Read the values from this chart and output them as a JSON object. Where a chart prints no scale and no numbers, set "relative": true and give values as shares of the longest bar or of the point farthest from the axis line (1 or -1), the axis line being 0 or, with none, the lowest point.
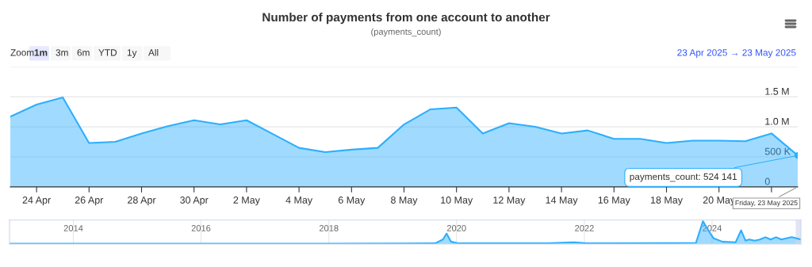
{
  "chart_data": [
    {
      "type": "area",
      "title": "Number of payments from one account to another",
      "subtitle": "(payments_count)",
      "color": "#2caffe",
      "grid": "y",
      "legend": false,
      "marker": "none",
      "x": [
        "2025-04-23",
        "2025-04-24",
        "2025-04-25",
        "2025-04-26",
        "2025-04-27",
        "2025-04-28",
        "2025-04-29",
        "2025-04-30",
        "2025-05-01",
        "2025-05-02",
        "2025-05-03",
        "2025-05-04",
        "2025-05-05",
        "2025-05-06",
        "2025-05-07",
        "2025-05-08",
        "2025-05-09",
        "2025-05-10",
        "2025-05-11",
        "2025-05-12",
        "2025-05-13",
        "2025-05-14",
        "2025-05-15",
        "2025-05-16",
        "2025-05-17",
        "2025-05-18",
        "2025-05-19",
        "2025-05-20",
        "2025-05-21",
        "2025-05-22",
        "2025-05-23"
      ],
      "values": [
        1170000,
        1370000,
        1490000,
        730000,
        750000,
        890000,
        1010000,
        1110000,
        1040000,
        1110000,
        880000,
        650000,
        580000,
        620000,
        650000,
        1040000,
        1290000,
        1320000,
        890000,
        1060000,
        1000000,
        890000,
        940000,
        800000,
        800000,
        730000,
        770000,
        770000,
        760000,
        890000,
        524141
      ],
      "xlim": [
        "2025-04-23",
        "2025-05-23"
      ],
      "xticks": [
        {
          "value": "2025-04-24",
          "label": "24 Apr"
        },
        {
          "value": "2025-04-26",
          "label": "26 Apr"
        },
        {
          "value": "2025-04-28",
          "label": "28 Apr"
        },
        {
          "value": "2025-04-30",
          "label": "30 Apr"
        },
        {
          "value": "2025-05-02",
          "label": "2 May"
        },
        {
          "value": "2025-05-04",
          "label": "4 May"
        },
        {
          "value": "2025-05-06",
          "label": "6 May"
        },
        {
          "value": "2025-05-08",
          "label": "8 May"
        },
        {
          "value": "2025-05-10",
          "label": "10 May"
        },
        {
          "value": "2025-05-12",
          "label": "12 May"
        },
        {
          "value": "2025-05-14",
          "label": "14 May"
        },
        {
          "value": "2025-05-16",
          "label": "16 May"
        },
        {
          "value": "2025-05-18",
          "label": "18 May"
        },
        {
          "value": "2025-05-20",
          "label": "20 May"
        },
        {
          "value": "2025-05-22",
          "label": null
        }
      ],
      "ylim": [
        0,
        2000000
      ],
      "yticks": [
        {
          "value": 0,
          "label": "0"
        },
        {
          "value": 500000,
          "label": "500 K"
        },
        {
          "value": 1000000,
          "label": "1.0 M"
        },
        {
          "value": 1500000,
          "label": "1.5 M"
        },
        {
          "value": 2000000,
          "label": null
        }
      ],
      "annotations": [
        "Zoom",
        "1m",
        "3m",
        "6m",
        "YTD",
        "1y",
        "All",
        "23 Apr 2025 → 23 May 2025",
        {
          "text": "payments_count: 524 141",
          "x": "2025-05-23",
          "y": 524141
        },
        {
          "text": "Friday, 23 May 2025",
          "x": "2025-05-23",
          "y": 0
        }
      ]
    },
    {
      "type": "area",
      "relative": true,
      "color": "#2caffe",
      "grid": "x",
      "legend": false,
      "marker": "none",
      "x": [
        "2013-01-01",
        "2014-01-01",
        "2016-01-01",
        "2018-01-01",
        "2019-09-01",
        "2019-10-15",
        "2019-11-05",
        "2019-12-01",
        "2020-01-15",
        "2021-06-01",
        "2021-11-01",
        "2022-01-15",
        "2023-06-01",
        "2023-10-01",
        "2023-11-10",
        "2023-12-10",
        "2024-01-10",
        "2024-03-01",
        "2024-05-15",
        "2024-06-15",
        "2024-07-10",
        "2024-08-01",
        "2024-09-01",
        "2024-10-01",
        "2024-11-01",
        "2024-12-01",
        "2025-01-01",
        "2025-02-01",
        "2025-03-01",
        "2025-04-01",
        "2025-05-23"
      ],
      "values": [
        0.02,
        0.02,
        0.02,
        0.02,
        0.03,
        0.2,
        0.46,
        0.1,
        0.03,
        0.03,
        0.08,
        0.03,
        0.04,
        0.05,
        1.0,
        0.6,
        0.25,
        0.1,
        0.08,
        0.6,
        0.15,
        0.2,
        0.15,
        0.2,
        0.3,
        0.2,
        0.3,
        0.2,
        0.25,
        0.3,
        0.2
      ],
      "xlim": [
        "2013-01-01",
        "2025-05-23"
      ],
      "xticks": [
        {
          "value": "2014-01-01",
          "label": "2014"
        },
        {
          "value": "2016-01-01",
          "label": "2016"
        },
        {
          "value": "2018-01-01",
          "label": "2018"
        },
        {
          "value": "2020-01-01",
          "label": "2020"
        },
        {
          "value": "2022-01-01",
          "label": "2022"
        },
        {
          "value": "2024-01-01",
          "label": "2024"
        }
      ],
      "bands": [
        {
          "axis": "x",
          "from": "2025-04-23",
          "to": "2025-05-23",
          "color": "#ccd6eb"
        }
      ]
    }
  ]
}
